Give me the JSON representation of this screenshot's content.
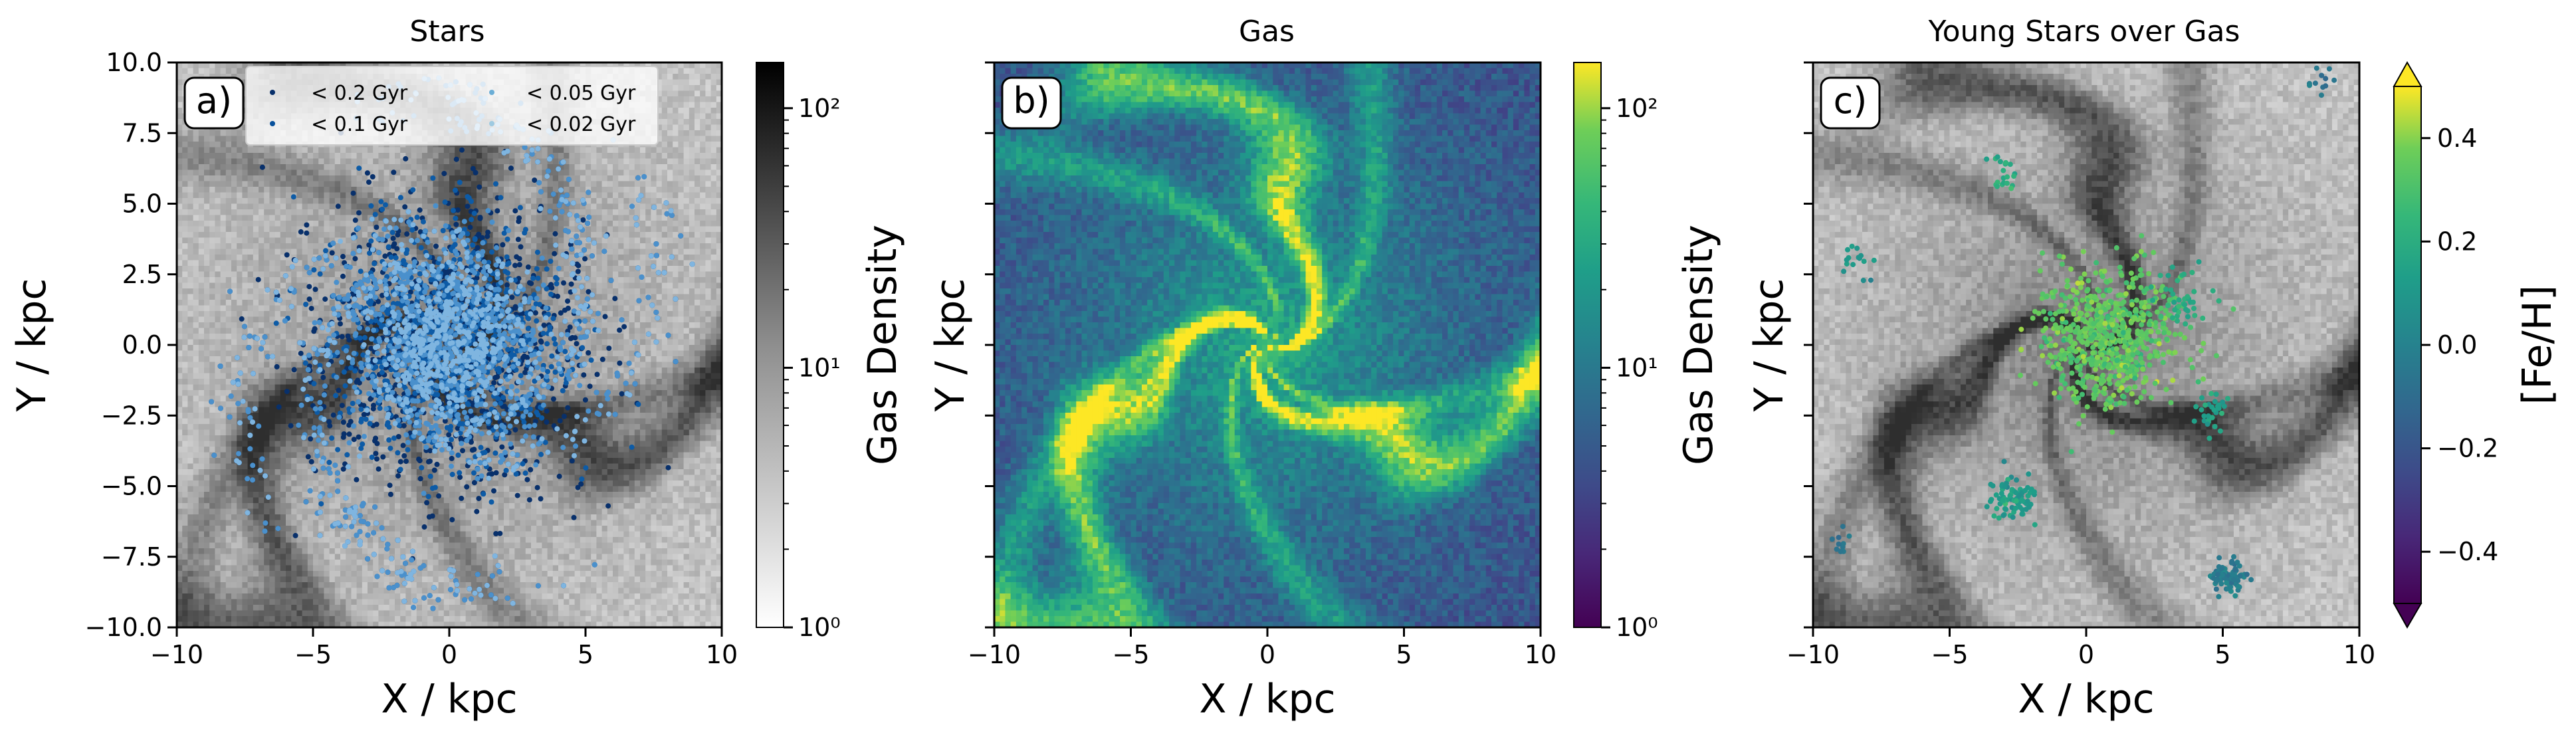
{
  "chart_data": [
    {
      "type": "heatmap",
      "title": "Stars",
      "panel_label": "a)",
      "xlabel": "X / kpc",
      "ylabel": "Y / kpc",
      "xlim": [
        -10,
        10
      ],
      "ylim": [
        -10,
        10
      ],
      "xticks": [
        -10,
        -5,
        0,
        5,
        10
      ],
      "yticks": [
        -10.0,
        -7.5,
        -5.0,
        -2.5,
        0.0,
        2.5,
        5.0,
        7.5,
        10.0
      ],
      "xtick_labels": [
        "−10",
        "−5",
        "0",
        "5",
        "10"
      ],
      "ytick_labels": [
        "−10.0",
        "−7.5",
        "−5.0",
        "−2.5",
        "0.0",
        "2.5",
        "5.0",
        "7.5",
        "10.0"
      ],
      "background": "gas density (log), greyscale",
      "colorbar": {
        "label": "Gas Density",
        "scale": "log",
        "range": [
          1,
          150
        ],
        "colormap": "Greys",
        "tick_labels": [
          "10⁰",
          "10¹",
          "10²"
        ]
      },
      "legend": {
        "placement": "top",
        "entries": [
          {
            "label": "< 0.2 Gyr",
            "color": "#08306b"
          },
          {
            "label": "< 0.05 Gyr",
            "color": "#6baed6"
          },
          {
            "label": "< 0.1 Gyr",
            "color": "#08519c"
          },
          {
            "label": "< 0.02 Gyr",
            "color": "#9ecae1"
          }
        ]
      },
      "series": [
        {
          "name": "< 0.2 Gyr",
          "color": "#08306b"
        },
        {
          "name": "< 0.1 Gyr",
          "color": "#0d5ba6"
        },
        {
          "name": "< 0.05 Gyr",
          "color": "#4a90cc"
        },
        {
          "name": "< 0.02 Gyr",
          "color": "#7fb5e0"
        }
      ]
    },
    {
      "type": "heatmap",
      "title": "Gas",
      "panel_label": "b)",
      "xlabel": "X / kpc",
      "ylabel": "Y / kpc",
      "xlim": [
        -10,
        10
      ],
      "ylim": [
        -10,
        10
      ],
      "xticks": [
        -10,
        -5,
        0,
        5,
        10
      ],
      "xtick_labels": [
        "−10",
        "−5",
        "0",
        "5",
        "10"
      ],
      "colorbar": {
        "label": "Gas Density",
        "scale": "log",
        "range": [
          1,
          150
        ],
        "colormap": "viridis",
        "tick_labels": [
          "10⁰",
          "10¹",
          "10²"
        ]
      }
    },
    {
      "type": "heatmap",
      "title": "Young Stars over Gas",
      "panel_label": "c)",
      "xlabel": "X / kpc",
      "ylabel": "Y / kpc",
      "xlim": [
        -10,
        10
      ],
      "ylim": [
        -10,
        10
      ],
      "xticks": [
        -10,
        -5,
        0,
        5,
        10
      ],
      "xtick_labels": [
        "−10",
        "−5",
        "0",
        "5",
        "10"
      ],
      "colorbar": {
        "label": "[Fe/H]",
        "scale": "linear",
        "range": [
          -0.5,
          0.5
        ],
        "colormap": "viridis",
        "extend": "both",
        "ticks": [
          -0.4,
          -0.2,
          0.0,
          0.2,
          0.4
        ],
        "tick_labels": [
          "−0.4",
          "−0.2",
          "0.0",
          "0.2",
          "0.4"
        ]
      }
    }
  ]
}
